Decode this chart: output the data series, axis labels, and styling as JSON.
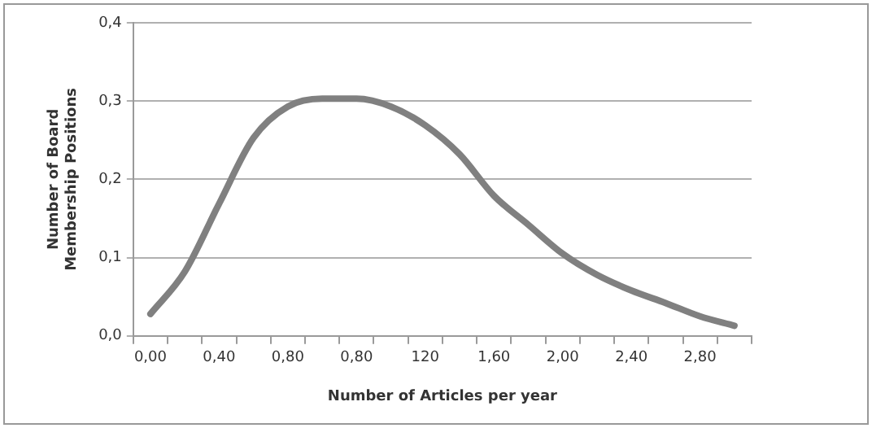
{
  "chart_data": {
    "type": "line",
    "xlabel": "Number of Articles per year",
    "ylabel": "Number of Board Membership Positions",
    "categories": [
      "0,00",
      null,
      "0,40",
      null,
      "0,80",
      null,
      "0,80",
      null,
      "120",
      null,
      "1,60",
      null,
      "2,00",
      null,
      "2,40",
      null,
      "2,80",
      null
    ],
    "series": [
      {
        "color": "#808080",
        "values": [
          0.028,
          0.082,
          0.169,
          0.253,
          0.293,
          0.303,
          0.303,
          0.293,
          0.269,
          0.232,
          0.179,
          0.142,
          0.105,
          0.078,
          0.058,
          0.042,
          0.025,
          0.013
        ]
      }
    ],
    "ylim": [
      0,
      0.4
    ],
    "yticks": [
      {
        "value": 0,
        "label": "0,0"
      },
      {
        "value": 0.1,
        "label": "0,1"
      },
      {
        "value": 0.2,
        "label": "0,2"
      },
      {
        "value": 0.3,
        "label": "0,3"
      },
      {
        "value": 0.4,
        "label": "0,4"
      }
    ],
    "grid": "y",
    "legend": false,
    "marker": "none",
    "line_style": "solid"
  }
}
